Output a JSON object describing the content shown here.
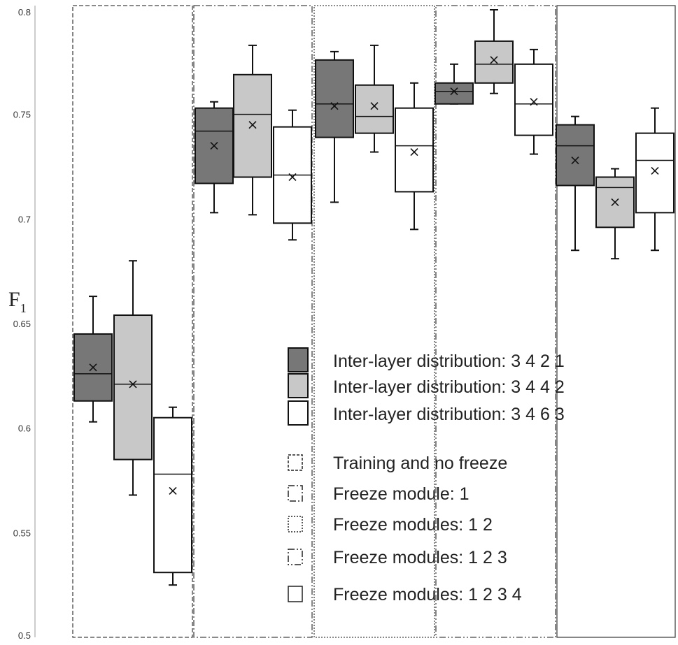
{
  "chart_data": {
    "type": "box",
    "ylabel": "F",
    "ylabel_subscript": "1",
    "ylim": [
      0.5,
      0.8
    ],
    "yticks": [
      "0.5",
      "0.55",
      "0.6",
      "0.65",
      "0.7",
      "0.75",
      "0.8"
    ],
    "grid": false,
    "legend_position": "bottom-right",
    "series": [
      {
        "name": "Inter-layer distribution: 3 4 2 1",
        "fill": "#777777"
      },
      {
        "name": "Inter-layer distribution: 3 4 4 2",
        "fill": "#c8c8c8"
      },
      {
        "name": "Inter-layer distribution: 3 4 6 3",
        "fill": "#ffffff"
      }
    ],
    "groups": [
      {
        "name": "Training and no freeze",
        "border": "dashed",
        "boxes": [
          {
            "whisker_low": 0.603,
            "q1": 0.613,
            "median": 0.626,
            "q3": 0.645,
            "whisker_high": 0.663,
            "mean": 0.629
          },
          {
            "whisker_low": 0.568,
            "q1": 0.585,
            "median": 0.621,
            "q3": 0.654,
            "whisker_high": 0.68,
            "mean": 0.621
          },
          {
            "whisker_low": 0.525,
            "q1": 0.531,
            "median": 0.578,
            "q3": 0.605,
            "whisker_high": 0.61,
            "mean": 0.57
          }
        ]
      },
      {
        "name": "Freeze module: 1",
        "border": "dash-dot",
        "boxes": [
          {
            "whisker_low": 0.703,
            "q1": 0.717,
            "median": 0.742,
            "q3": 0.753,
            "whisker_high": 0.756,
            "mean": 0.735
          },
          {
            "whisker_low": 0.702,
            "q1": 0.72,
            "median": 0.75,
            "q3": 0.769,
            "whisker_high": 0.783,
            "mean": 0.745
          },
          {
            "whisker_low": 0.69,
            "q1": 0.698,
            "median": 0.721,
            "q3": 0.744,
            "whisker_high": 0.752,
            "mean": 0.72
          }
        ]
      },
      {
        "name": "Freeze modules: 1 2",
        "border": "dotted",
        "boxes": [
          {
            "whisker_low": 0.708,
            "q1": 0.739,
            "median": 0.755,
            "q3": 0.776,
            "whisker_high": 0.78,
            "mean": 0.754
          },
          {
            "whisker_low": 0.732,
            "q1": 0.741,
            "median": 0.749,
            "q3": 0.764,
            "whisker_high": 0.783,
            "mean": 0.754
          },
          {
            "whisker_low": 0.695,
            "q1": 0.713,
            "median": 0.735,
            "q3": 0.753,
            "whisker_high": 0.765,
            "mean": 0.732
          }
        ]
      },
      {
        "name": "Freeze modules: 1 2 3",
        "border": "dash-dot-dot",
        "boxes": [
          {
            "whisker_low": 0.755,
            "q1": 0.755,
            "median": 0.761,
            "q3": 0.765,
            "whisker_high": 0.774,
            "mean": 0.761
          },
          {
            "whisker_low": 0.76,
            "q1": 0.765,
            "median": 0.774,
            "q3": 0.785,
            "whisker_high": 0.8,
            "mean": 0.776
          },
          {
            "whisker_low": 0.731,
            "q1": 0.74,
            "median": 0.755,
            "q3": 0.774,
            "whisker_high": 0.781,
            "mean": 0.756
          }
        ]
      },
      {
        "name": "Freeze modules: 1 2 3 4",
        "border": "solid",
        "boxes": [
          {
            "whisker_low": 0.685,
            "q1": 0.716,
            "median": 0.735,
            "q3": 0.745,
            "whisker_high": 0.749,
            "mean": 0.728
          },
          {
            "whisker_low": 0.681,
            "q1": 0.696,
            "median": 0.715,
            "q3": 0.72,
            "whisker_high": 0.724,
            "mean": 0.708
          },
          {
            "whisker_low": 0.685,
            "q1": 0.703,
            "median": 0.728,
            "q3": 0.741,
            "whisker_high": 0.753,
            "mean": 0.723
          }
        ]
      }
    ]
  }
}
